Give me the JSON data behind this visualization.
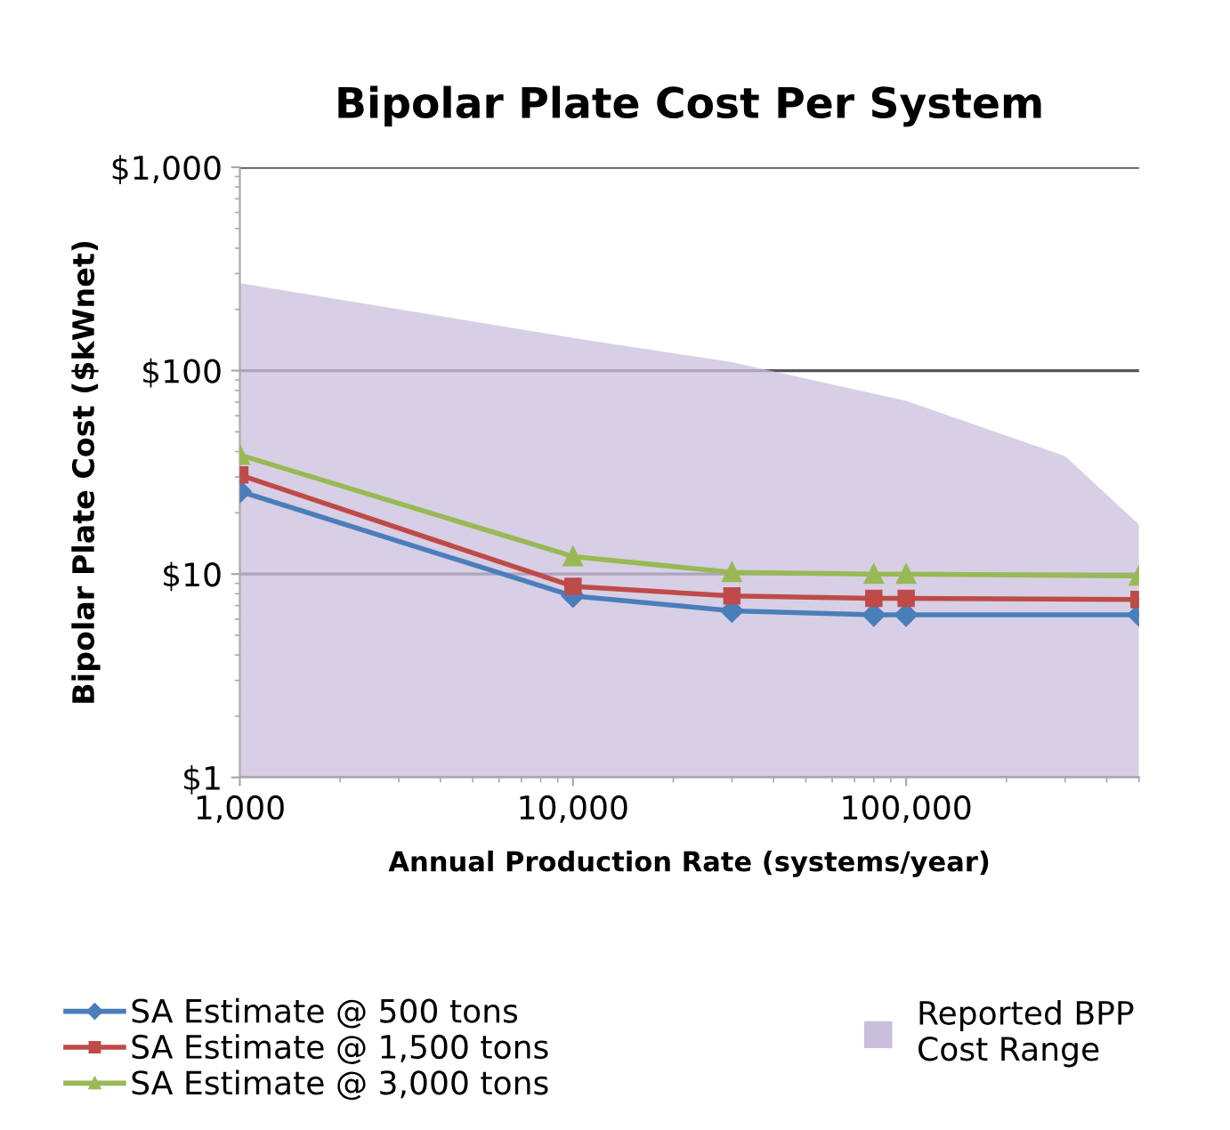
{
  "chart_data": {
    "type": "line",
    "title": "Bipolar Plate Cost Per System",
    "xlabel": "Annual Production Rate (systems/year)",
    "ylabel": "Bipolar Plate Cost ($kWnet)",
    "x": [
      1000,
      10000,
      30000,
      80000,
      100000,
      500000
    ],
    "series": [
      {
        "type": "area",
        "name": "Reported BPP Cost Range",
        "color": "#c9bfdc",
        "x": [
          1000,
          10000,
          30000,
          100000,
          300000,
          500000
        ],
        "values": [
          269,
          145,
          110,
          71,
          38,
          17.5
        ]
      },
      {
        "name": "SA Estimate @ 500 tons",
        "color": "#4a7ebb",
        "marker": "diamond",
        "values": [
          25.5,
          7.8,
          6.6,
          6.3,
          6.3,
          6.3
        ]
      },
      {
        "name": "SA Estimate @ 1,500 tons",
        "color": "#be4b48",
        "marker": "square",
        "values": [
          30.7,
          8.7,
          7.8,
          7.6,
          7.6,
          7.5
        ]
      },
      {
        "name": "SA Estimate @ 3,000 tons",
        "color": "#98b954",
        "marker": "triangle",
        "values": [
          38.5,
          12.2,
          10.2,
          10,
          10,
          9.8
        ]
      }
    ],
    "log": "xy",
    "xlim": [
      1000,
      500000
    ],
    "ylim": [
      1,
      1000
    ],
    "xticks": [
      {
        "value": 1000,
        "label": "1,000"
      },
      {
        "value": 10000,
        "label": "10,000"
      },
      {
        "value": 100000,
        "label": "100,000"
      }
    ],
    "yticks": [
      {
        "value": 1,
        "label": "$1"
      },
      {
        "value": 10,
        "label": "$10"
      },
      {
        "value": 100,
        "label": "$100"
      },
      {
        "value": 1000,
        "label": "$1,000"
      }
    ],
    "grid": "y",
    "legend": "bottom",
    "line_style": "solid"
  }
}
